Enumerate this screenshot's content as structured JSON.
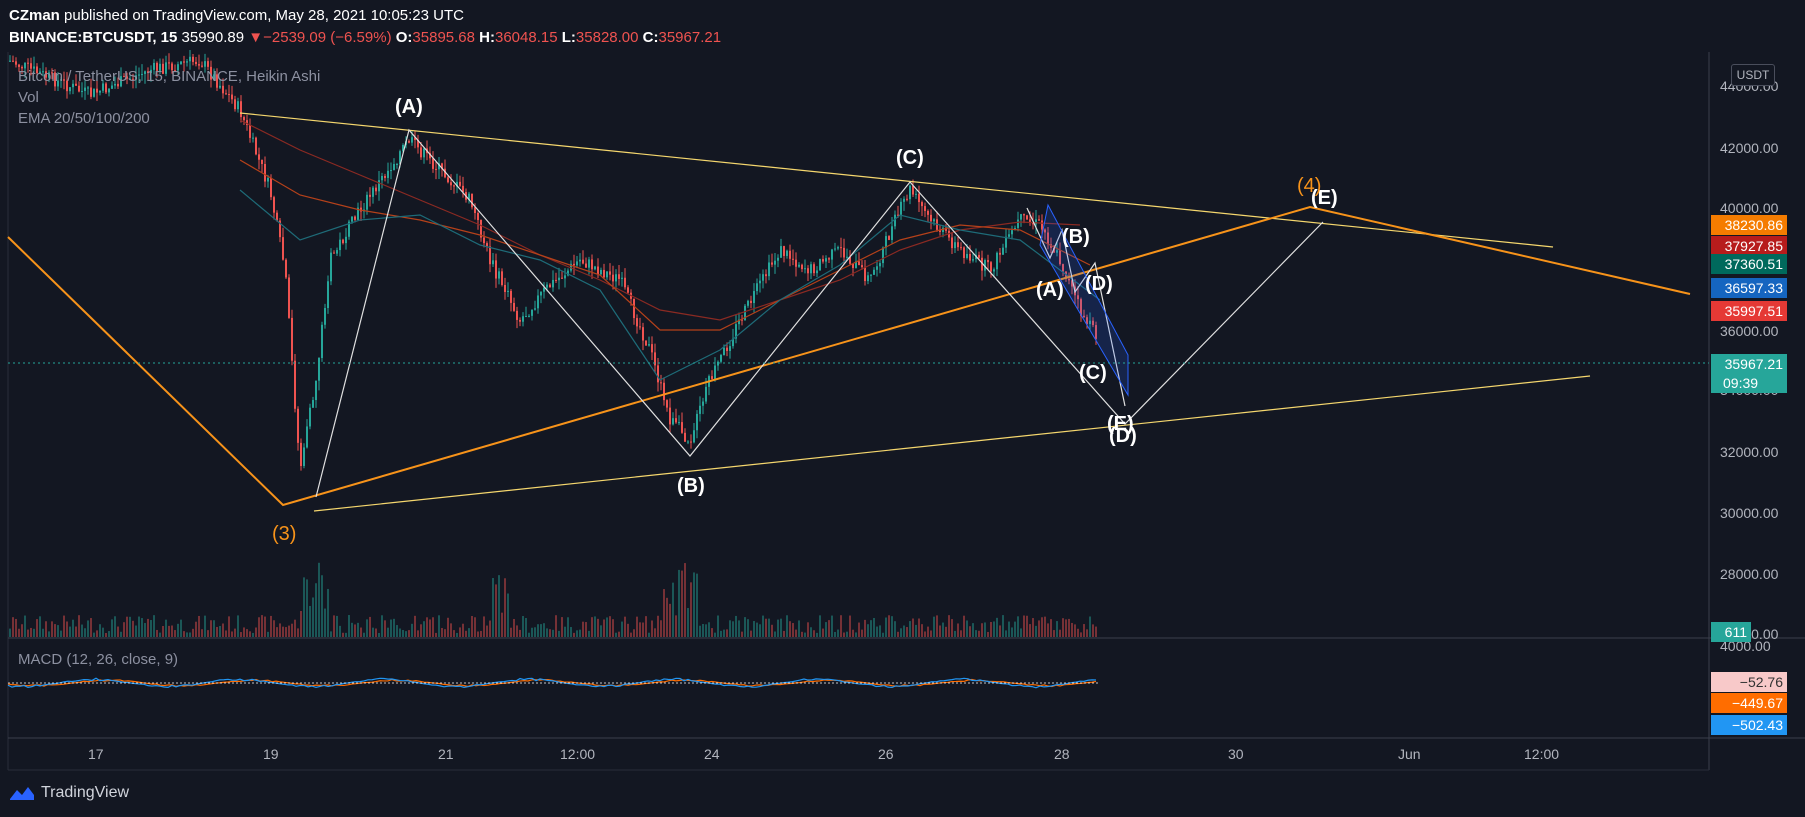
{
  "header": {
    "author": "CZman",
    "published": "published on TradingView.com, May 28, 2021 10:05:23 UTC",
    "symbol": "BINANCE:BTCUSDT, 15",
    "last": "35990.89",
    "change_arrow": "▼",
    "change": "−2539.09 (−6.59%)",
    "o_label": "O:",
    "o": "35895.68",
    "h_label": "H:",
    "h": "36048.15",
    "l_label": "L:",
    "l": "35828.00",
    "c_label": "C:",
    "c": "35967.21"
  },
  "legend": {
    "title": "Bitcoin / TetherUS, 15, BINANCE, Heikin Ashi",
    "vol": "Vol",
    "ema": "EMA 20/50/100/200",
    "macd": "MACD (12, 26, close, 9)"
  },
  "price_axis": {
    "currency": "USDT",
    "ticks": [
      "44000.00",
      "42000.00",
      "40000.00",
      "38000.00",
      "36000.00",
      "34000.00",
      "32000.00",
      "30000.00",
      "28000.00",
      "26000.00"
    ],
    "tags": [
      {
        "label": "38230.86",
        "color": "#f57c00"
      },
      {
        "label": "37927.85",
        "color": "#b71c1c"
      },
      {
        "label": "37360.51",
        "color": "#00695c"
      },
      {
        "label": "36597.33",
        "color": "#1565c0"
      },
      {
        "label": "35997.51",
        "color": "#e53935"
      },
      {
        "label": "35967.21",
        "color": "#26a69a"
      },
      {
        "label": "09:39",
        "color": "#26a69a"
      }
    ],
    "volume_tag": "611"
  },
  "macd_axis": {
    "tick": "4000.00",
    "tags": [
      {
        "label": "−52.76",
        "color": "#f8c9c9"
      },
      {
        "label": "−449.67",
        "color": "#ff6d00"
      },
      {
        "label": "−502.43",
        "color": "#2196f3"
      }
    ]
  },
  "time_axis": [
    "17",
    "19",
    "21",
    "12:00",
    "24",
    "26",
    "28",
    "30",
    "Jun",
    "12:00"
  ],
  "wave_labels": [
    {
      "text": "(A)",
      "color": "#ffffff"
    },
    {
      "text": "(B)",
      "color": "#ffffff"
    },
    {
      "text": "(C)",
      "color": "#ffffff"
    },
    {
      "text": "(A)",
      "color": "#ffffff"
    },
    {
      "text": "(B)",
      "color": "#ffffff"
    },
    {
      "text": "(C)",
      "color": "#ffffff"
    },
    {
      "text": "(D)",
      "color": "#ffffff"
    },
    {
      "text": "(E)",
      "color": "#ffffff"
    },
    {
      "text": "(D)",
      "color": "#ffffff"
    },
    {
      "text": "(E)",
      "color": "#ffffff"
    },
    {
      "text": "(3)",
      "color": "#f7931a"
    },
    {
      "text": "(4)",
      "color": "#f7931a"
    }
  ],
  "colors": {
    "bg": "#131722",
    "up": "#26a69a",
    "down": "#ef5350",
    "trend": "#f7931a",
    "channel": "#f5d76e",
    "grid": "#1e2230"
  },
  "branding": {
    "name": "TradingView"
  }
}
